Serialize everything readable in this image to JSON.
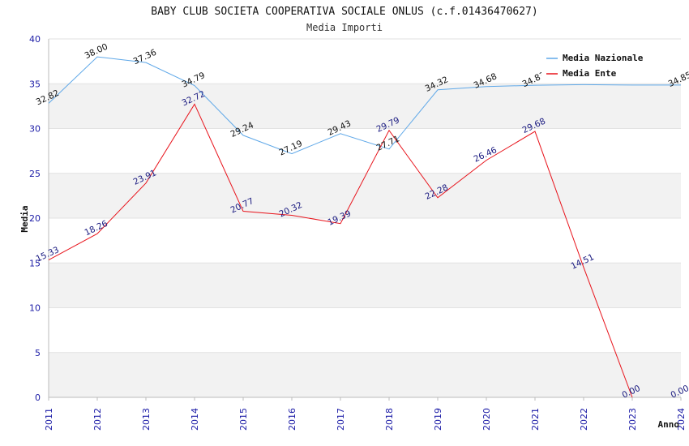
{
  "chart_data": {
    "type": "line",
    "title": "BABY CLUB SOCIETA COOPERATIVA SOCIALE ONLUS (c.f.01436470627)",
    "subtitle": "Media Importi",
    "xlabel": "Anno",
    "ylabel": "Media",
    "ylim": [
      0,
      40
    ],
    "y_ticks": [
      "0",
      "5",
      "10",
      "15",
      "20",
      "25",
      "30",
      "35",
      "40"
    ],
    "categories": [
      "2011",
      "2012",
      "2013",
      "2014",
      "2015",
      "2016",
      "2017",
      "2018",
      "2019",
      "2020",
      "2021",
      "2022",
      "2023",
      "2024"
    ],
    "grid": "horizontal bands",
    "legend_position": "top-right",
    "series": [
      {
        "name": "Media Nazionale",
        "color": "#5fa8e8",
        "values": [
          32.82,
          38.0,
          37.36,
          34.79,
          29.24,
          27.19,
          29.43,
          27.71,
          34.32,
          34.68,
          34.83,
          34.9,
          34.85,
          34.85
        ],
        "labels": [
          "32.82",
          "38.00",
          "37.36",
          "34.79",
          "29.24",
          "27.19",
          "29.43",
          "27.71",
          "34.32",
          "34.68",
          "34.83",
          "",
          "",
          "34.85"
        ]
      },
      {
        "name": "Media Ente",
        "color": "#e8141c",
        "values": [
          15.33,
          18.26,
          23.91,
          32.72,
          20.77,
          20.32,
          19.39,
          29.79,
          22.28,
          26.46,
          29.68,
          14.51,
          0.0,
          null
        ],
        "labels": [
          "15.33",
          "18.26",
          "23.91",
          "32.72",
          "20.77",
          "20.32",
          "19.39",
          "29.79",
          "22.28",
          "26.46",
          "29.68",
          "14.51",
          "0.00",
          "0.00"
        ]
      }
    ]
  }
}
